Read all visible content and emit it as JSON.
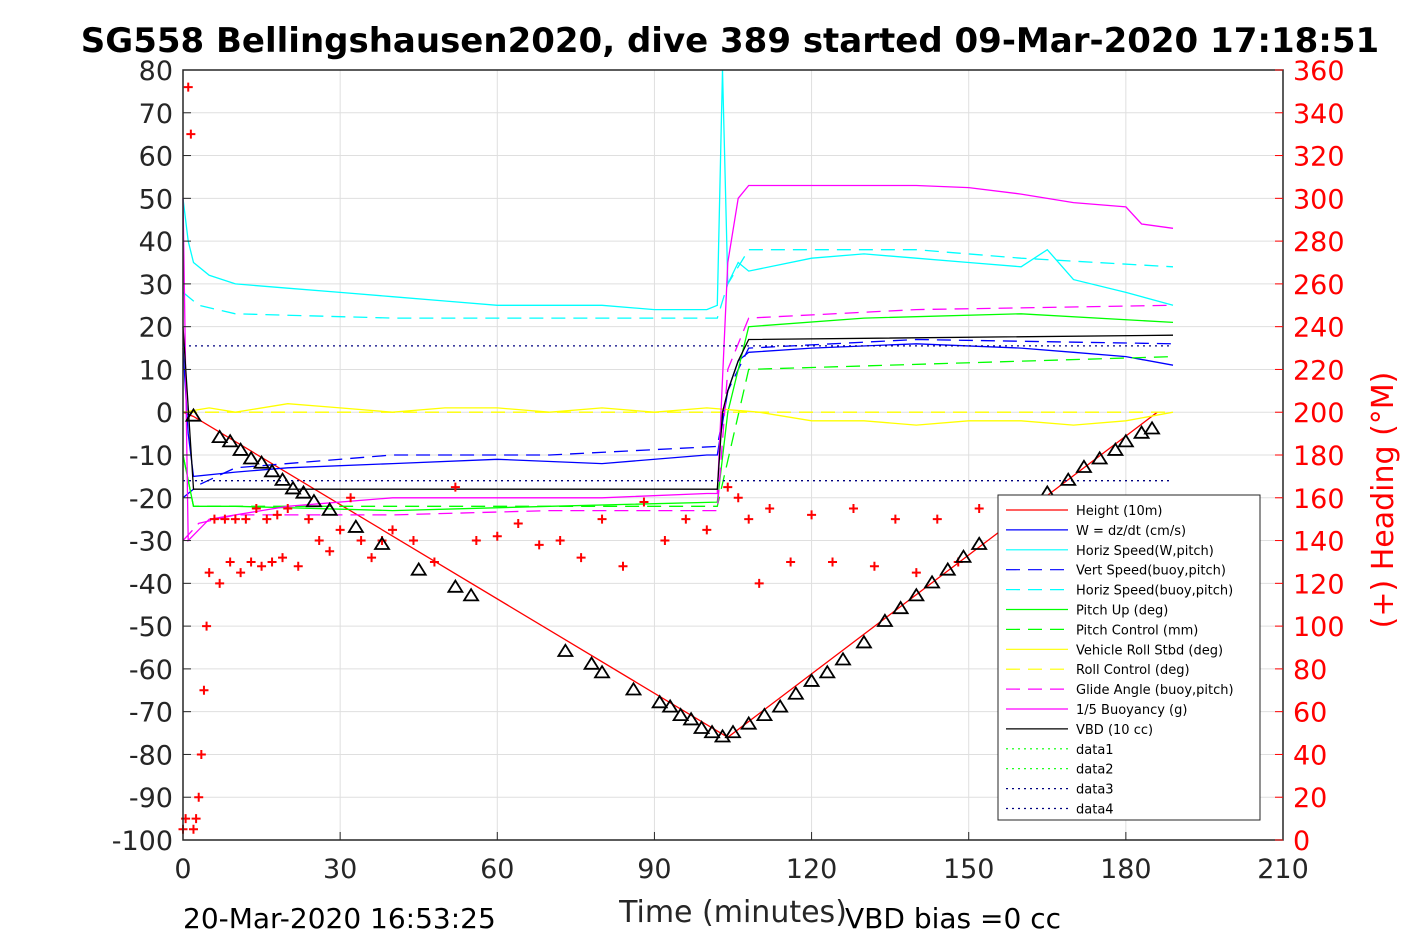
{
  "chart_data": {
    "type": "line",
    "title": "SG558 Bellingshausen2020, dive 389 started 09-Mar-2020 17:18:51",
    "xlabel": "Time (minutes)",
    "ylabel": "",
    "ylabel_right": "(+) Heading (°M)",
    "xlim": [
      0,
      210
    ],
    "ylim": [
      -100,
      80
    ],
    "ylim_right": [
      0,
      360
    ],
    "xticks": [
      "0",
      "30",
      "60",
      "90",
      "120",
      "150",
      "180",
      "210"
    ],
    "yticks": [
      "80",
      "70",
      "60",
      "50",
      "40",
      "30",
      "20",
      "10",
      "0",
      "-10",
      "-20",
      "-30",
      "-40",
      "-50",
      "-60",
      "-70",
      "-80",
      "-90",
      "-100"
    ],
    "yticks_right": [
      "360",
      "340",
      "320",
      "300",
      "280",
      "260",
      "240",
      "220",
      "200",
      "180",
      "160",
      "140",
      "120",
      "100",
      "80",
      "60",
      "40",
      "20",
      "0"
    ],
    "grid": true,
    "legend_position": "bottom-right",
    "footer_left": "20-Mar-2020 16:53:25",
    "footer_right": "VBD bias =0 cc",
    "series": [
      {
        "name": "Height (10m)",
        "color": "#ff0000",
        "style": "solid",
        "x": [
          0,
          2,
          104,
          186
        ],
        "y": [
          0,
          -1,
          -76,
          0
        ]
      },
      {
        "name": "W = dz/dt (cm/s)",
        "color": "#0000ff",
        "style": "solid",
        "x": [
          0,
          1,
          2,
          10,
          20,
          40,
          60,
          80,
          100,
          102,
          104,
          106,
          108,
          120,
          140,
          160,
          170,
          180,
          189
        ],
        "y": [
          15,
          -5,
          -15,
          -14,
          -13,
          -12,
          -11,
          -12,
          -10,
          -10,
          5,
          12,
          14,
          15,
          16,
          15,
          14,
          13,
          11
        ]
      },
      {
        "name": "Horiz Speed(W,pitch)",
        "color": "#00ffff",
        "style": "solid",
        "x": [
          0,
          1,
          2,
          5,
          10,
          20,
          30,
          40,
          50,
          60,
          70,
          80,
          90,
          100,
          102,
          103,
          104,
          106,
          108,
          120,
          130,
          140,
          150,
          160,
          165,
          170,
          180,
          189
        ],
        "y": [
          50,
          40,
          35,
          32,
          30,
          29,
          28,
          27,
          26,
          25,
          25,
          25,
          24,
          24,
          25,
          80,
          30,
          35,
          33,
          36,
          37,
          36,
          35,
          34,
          38,
          31,
          28,
          25
        ]
      },
      {
        "name": "Vert Speed(buoy,pitch)",
        "color": "#0000ff",
        "style": "dashed",
        "x": [
          0,
          3,
          10,
          40,
          70,
          102,
          104,
          108,
          140,
          189
        ],
        "y": [
          -20,
          -17,
          -13,
          -10,
          -10,
          -8,
          5,
          15,
          17,
          16
        ]
      },
      {
        "name": "Horiz Speed(buoy,pitch)",
        "color": "#00ffff",
        "style": "dashed",
        "x": [
          0,
          3,
          10,
          40,
          70,
          102,
          104,
          108,
          140,
          160,
          189
        ],
        "y": [
          28,
          25,
          23,
          22,
          22,
          22,
          30,
          38,
          38,
          36,
          34
        ]
      },
      {
        "name": "Pitch Up (deg)",
        "color": "#00ff00",
        "style": "solid",
        "x": [
          0,
          2,
          10,
          40,
          70,
          102,
          104,
          108,
          130,
          160,
          189
        ],
        "y": [
          -10,
          -22,
          -22,
          -23,
          -22,
          -21,
          0,
          20,
          22,
          23,
          21
        ]
      },
      {
        "name": "Pitch Control (mm)",
        "color": "#00ff00",
        "style": "dashed",
        "x": [
          0,
          2,
          102,
          108,
          189
        ],
        "y": [
          -10,
          -22,
          -22,
          10,
          13
        ]
      },
      {
        "name": "Vehicle Roll Stbd (deg)",
        "color": "#ffff00",
        "style": "solid",
        "x": [
          0,
          5,
          10,
          20,
          30,
          40,
          50,
          60,
          70,
          80,
          90,
          100,
          110,
          120,
          130,
          140,
          150,
          160,
          170,
          180,
          189
        ],
        "y": [
          0,
          1,
          0,
          2,
          1,
          0,
          1,
          1,
          0,
          1,
          0,
          1,
          0,
          -2,
          -2,
          -3,
          -2,
          -2,
          -3,
          -2,
          0
        ]
      },
      {
        "name": "Roll Control (deg)",
        "color": "#ffff00",
        "style": "dashed",
        "x": [
          0,
          10,
          20,
          30,
          40,
          50,
          60,
          70,
          80,
          90,
          100,
          110,
          120,
          130,
          140,
          150,
          160,
          170,
          180,
          189
        ],
        "y": [
          0,
          0,
          0,
          0,
          0,
          0,
          0,
          0,
          0,
          0,
          0,
          0,
          0,
          0,
          0,
          0,
          0,
          0,
          0,
          0
        ]
      },
      {
        "name": "Glide Angle (buoy,pitch)",
        "color": "#ff00ff",
        "style": "dashed",
        "x": [
          0,
          3,
          10,
          40,
          70,
          102,
          104,
          108,
          140,
          189
        ],
        "y": [
          -30,
          -26,
          -24,
          -24,
          -23,
          -23,
          10,
          22,
          24,
          25
        ]
      },
      {
        "name": "1/5 Buoyancy (g)",
        "color": "#ff00ff",
        "style": "solid",
        "x": [
          0,
          1,
          5,
          20,
          40,
          60,
          80,
          100,
          102,
          104,
          106,
          108,
          120,
          140,
          150,
          160,
          170,
          180,
          183,
          189
        ],
        "y": [
          50,
          -30,
          -25,
          -22,
          -20,
          -20,
          -20,
          -19,
          -19,
          35,
          50,
          53,
          53,
          53,
          52.5,
          51,
          49,
          48,
          44,
          43
        ]
      },
      {
        "name": "VBD (10 cc)",
        "color": "#000000",
        "style": "solid",
        "x": [
          0,
          2,
          102,
          103,
          104,
          106,
          108,
          189
        ],
        "y": [
          20,
          -18,
          -18,
          0,
          5,
          12,
          17,
          18
        ]
      },
      {
        "name": "data1",
        "color": "#00ff00",
        "style": "dotted",
        "x": [],
        "y": []
      },
      {
        "name": "data2",
        "color": "#00ff00",
        "style": "dotted",
        "x": [],
        "y": []
      },
      {
        "name": "data3",
        "color": "#000080",
        "style": "dotted",
        "x": [
          0,
          189
        ],
        "y": [
          15.5,
          15.5
        ]
      },
      {
        "name": "data4",
        "color": "#000080",
        "style": "dotted",
        "x": [
          0,
          189
        ],
        "y": [
          -16,
          -16
        ]
      }
    ],
    "heading": {
      "color": "#ff0000",
      "marker": "+",
      "x": [
        0,
        0.5,
        1,
        1.5,
        2,
        2.5,
        3,
        3.5,
        4,
        4.5,
        5,
        6,
        7,
        8,
        9,
        10,
        11,
        12,
        13,
        14,
        15,
        16,
        17,
        18,
        19,
        20,
        22,
        24,
        26,
        28,
        30,
        32,
        34,
        36,
        38,
        40,
        44,
        48,
        52,
        56,
        60,
        64,
        68,
        72,
        76,
        80,
        84,
        88,
        92,
        96,
        100,
        104,
        106,
        108,
        110,
        112,
        116,
        120,
        124,
        128,
        132,
        136,
        140,
        144,
        148,
        152
      ],
      "y": [
        5,
        10,
        352,
        330,
        5,
        10,
        20,
        40,
        70,
        100,
        125,
        150,
        120,
        150,
        130,
        150,
        125,
        150,
        130,
        155,
        128,
        150,
        130,
        152,
        132,
        155,
        128,
        150,
        140,
        135,
        145,
        160,
        140,
        132,
        140,
        145,
        140,
        130,
        165,
        140,
        142,
        148,
        138,
        140,
        132,
        150,
        128,
        158,
        140,
        150,
        145,
        165,
        160,
        150,
        120,
        155,
        130,
        152,
        130,
        155,
        128,
        150,
        125,
        150,
        130,
        155
      ]
    },
    "vbd_markers": {
      "color": "#000000",
      "marker": "triangle",
      "x": [
        2,
        7,
        9,
        11,
        13,
        15,
        17,
        19,
        21,
        23,
        25,
        28,
        33,
        38,
        45,
        52,
        55,
        73,
        78,
        80,
        86,
        91,
        93,
        95,
        97,
        99,
        101,
        103,
        105,
        108,
        111,
        114,
        117,
        120,
        123,
        126,
        130,
        134,
        137,
        140,
        143,
        146,
        149,
        152,
        165,
        169,
        172,
        175,
        178,
        180,
        183,
        185
      ],
      "y": [
        -1,
        -6,
        -7,
        -9,
        -11,
        -12,
        -14,
        -16,
        -18,
        -19,
        -21,
        -23,
        -27,
        -31,
        -37,
        -41,
        -43,
        -56,
        -59,
        -61,
        -65,
        -68,
        -69,
        -71,
        -72,
        -74,
        -75,
        -76,
        -75,
        -73,
        -71,
        -69,
        -66,
        -63,
        -61,
        -58,
        -54,
        -49,
        -46,
        -43,
        -40,
        -37,
        -34,
        -31,
        -19,
        -16,
        -13,
        -11,
        -9,
        -7,
        -5,
        -4
      ]
    }
  }
}
